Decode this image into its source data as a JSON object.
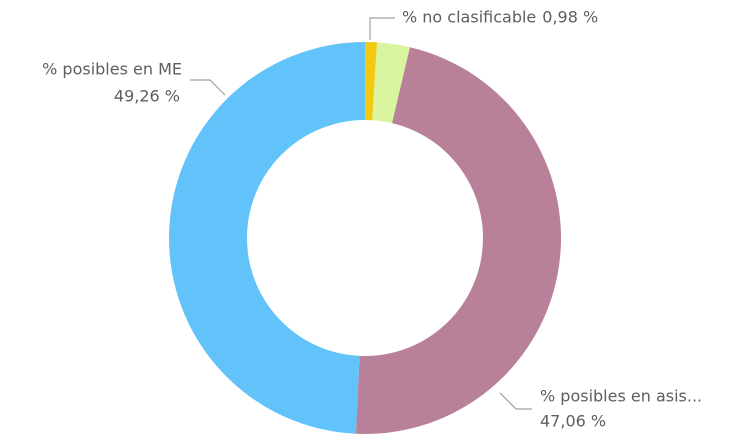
{
  "chart_data": {
    "type": "donut",
    "categories": [
      "% no clasificable",
      null,
      "% posibles en asis...",
      "% posibles en ME"
    ],
    "values": [
      0.98,
      2.7,
      47.06,
      49.26
    ],
    "value_labels": [
      "0,98 %",
      null,
      "47,06 %",
      "49,26 %"
    ],
    "colors": [
      "#f2c811",
      "#d9f5a0",
      "#b88199",
      "#62c3fb"
    ]
  }
}
